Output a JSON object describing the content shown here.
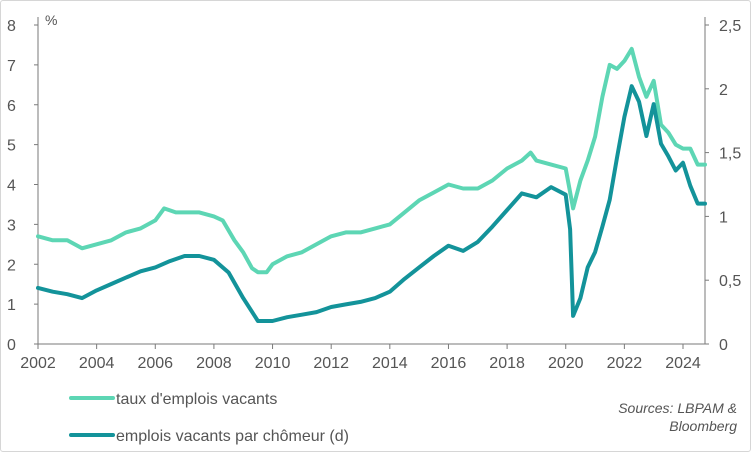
{
  "chart_data": {
    "type": "line",
    "unit_left": "%",
    "x_ticks": [
      "2002",
      "2004",
      "2006",
      "2008",
      "2010",
      "2012",
      "2014",
      "2016",
      "2018",
      "2020",
      "2022",
      "2024"
    ],
    "xlim": [
      2002,
      2024.75
    ],
    "y_left": {
      "min": 0,
      "max": 8,
      "ticks": [
        "0",
        "1",
        "2",
        "3",
        "4",
        "5",
        "6",
        "7",
        "8"
      ]
    },
    "y_right": {
      "min": 0,
      "max": 2.5,
      "ticks": [
        "0",
        "0,5",
        "1",
        "1,5",
        "2",
        "2,5"
      ]
    },
    "grid": false,
    "legend_position": "bottom-left",
    "source": [
      "Sources: LBPAM &",
      "Bloomberg"
    ],
    "series": [
      {
        "name": "taux d'emplois vacants",
        "axis": "left",
        "color": "#5DD6B4",
        "points": [
          [
            2002.0,
            2.7
          ],
          [
            2002.5,
            2.6
          ],
          [
            2003.0,
            2.6
          ],
          [
            2003.5,
            2.4
          ],
          [
            2004.0,
            2.5
          ],
          [
            2004.5,
            2.6
          ],
          [
            2005.0,
            2.8
          ],
          [
            2005.5,
            2.9
          ],
          [
            2006.0,
            3.1
          ],
          [
            2006.3,
            3.4
          ],
          [
            2006.7,
            3.3
          ],
          [
            2007.0,
            3.3
          ],
          [
            2007.5,
            3.3
          ],
          [
            2008.0,
            3.2
          ],
          [
            2008.3,
            3.1
          ],
          [
            2008.7,
            2.6
          ],
          [
            2009.0,
            2.3
          ],
          [
            2009.3,
            1.9
          ],
          [
            2009.5,
            1.8
          ],
          [
            2009.8,
            1.8
          ],
          [
            2010.0,
            2.0
          ],
          [
            2010.5,
            2.2
          ],
          [
            2011.0,
            2.3
          ],
          [
            2011.5,
            2.5
          ],
          [
            2012.0,
            2.7
          ],
          [
            2012.5,
            2.8
          ],
          [
            2013.0,
            2.8
          ],
          [
            2013.5,
            2.9
          ],
          [
            2014.0,
            3.0
          ],
          [
            2014.5,
            3.3
          ],
          [
            2015.0,
            3.6
          ],
          [
            2015.5,
            3.8
          ],
          [
            2016.0,
            4.0
          ],
          [
            2016.5,
            3.9
          ],
          [
            2017.0,
            3.9
          ],
          [
            2017.5,
            4.1
          ],
          [
            2018.0,
            4.4
          ],
          [
            2018.5,
            4.6
          ],
          [
            2018.8,
            4.8
          ],
          [
            2019.0,
            4.6
          ],
          [
            2019.5,
            4.5
          ],
          [
            2020.0,
            4.4
          ],
          [
            2020.25,
            3.4
          ],
          [
            2020.5,
            4.1
          ],
          [
            2020.75,
            4.6
          ],
          [
            2021.0,
            5.2
          ],
          [
            2021.25,
            6.2
          ],
          [
            2021.5,
            7.0
          ],
          [
            2021.75,
            6.9
          ],
          [
            2022.0,
            7.1
          ],
          [
            2022.25,
            7.4
          ],
          [
            2022.5,
            6.7
          ],
          [
            2022.75,
            6.2
          ],
          [
            2023.0,
            6.6
          ],
          [
            2023.25,
            5.5
          ],
          [
            2023.5,
            5.3
          ],
          [
            2023.75,
            5.0
          ],
          [
            2024.0,
            4.9
          ],
          [
            2024.25,
            4.9
          ],
          [
            2024.5,
            4.5
          ],
          [
            2024.75,
            4.5
          ]
        ]
      },
      {
        "name": "emplois vacants par chômeur (d)",
        "axis": "right",
        "color": "#13939A",
        "points": [
          [
            2002.0,
            0.44
          ],
          [
            2002.5,
            0.41
          ],
          [
            2003.0,
            0.39
          ],
          [
            2003.5,
            0.36
          ],
          [
            2004.0,
            0.42
          ],
          [
            2004.5,
            0.47
          ],
          [
            2005.0,
            0.52
          ],
          [
            2005.5,
            0.57
          ],
          [
            2006.0,
            0.6
          ],
          [
            2006.5,
            0.65
          ],
          [
            2007.0,
            0.69
          ],
          [
            2007.5,
            0.69
          ],
          [
            2008.0,
            0.66
          ],
          [
            2008.5,
            0.56
          ],
          [
            2009.0,
            0.36
          ],
          [
            2009.5,
            0.18
          ],
          [
            2010.0,
            0.18
          ],
          [
            2010.5,
            0.21
          ],
          [
            2011.0,
            0.23
          ],
          [
            2011.5,
            0.25
          ],
          [
            2012.0,
            0.29
          ],
          [
            2012.5,
            0.31
          ],
          [
            2013.0,
            0.33
          ],
          [
            2013.5,
            0.36
          ],
          [
            2014.0,
            0.41
          ],
          [
            2014.5,
            0.51
          ],
          [
            2015.0,
            0.6
          ],
          [
            2015.5,
            0.69
          ],
          [
            2016.0,
            0.77
          ],
          [
            2016.5,
            0.73
          ],
          [
            2017.0,
            0.8
          ],
          [
            2017.5,
            0.92
          ],
          [
            2018.0,
            1.05
          ],
          [
            2018.5,
            1.18
          ],
          [
            2019.0,
            1.15
          ],
          [
            2019.5,
            1.23
          ],
          [
            2020.0,
            1.17
          ],
          [
            2020.15,
            0.9
          ],
          [
            2020.25,
            0.22
          ],
          [
            2020.5,
            0.36
          ],
          [
            2020.75,
            0.6
          ],
          [
            2021.0,
            0.72
          ],
          [
            2021.25,
            0.92
          ],
          [
            2021.5,
            1.13
          ],
          [
            2021.75,
            1.46
          ],
          [
            2022.0,
            1.78
          ],
          [
            2022.25,
            2.02
          ],
          [
            2022.5,
            1.9
          ],
          [
            2022.75,
            1.63
          ],
          [
            2023.0,
            1.88
          ],
          [
            2023.25,
            1.57
          ],
          [
            2023.5,
            1.47
          ],
          [
            2023.75,
            1.36
          ],
          [
            2024.0,
            1.42
          ],
          [
            2024.25,
            1.24
          ],
          [
            2024.5,
            1.1
          ],
          [
            2024.75,
            1.1
          ]
        ]
      }
    ]
  }
}
